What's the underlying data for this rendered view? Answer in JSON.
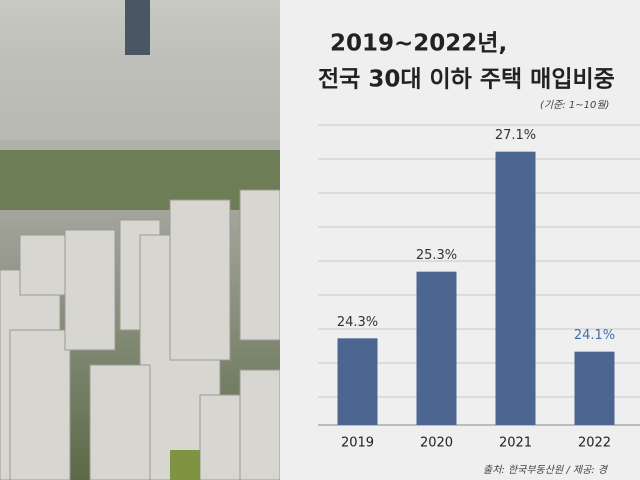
{
  "chart_data": {
    "type": "bar",
    "title": [
      "2019~2022년,",
      "전국 30대 이하 주택 매입비중"
    ],
    "note": "(기준: 1~10월)",
    "source": "출처: 한국부동산원 / 제공: 경",
    "categories": [
      "2019",
      "2020",
      "2021",
      "2022"
    ],
    "values": [
      24.3,
      25.3,
      27.1,
      24.1
    ],
    "value_labels": [
      "24.3%",
      "25.3%",
      "27.1%",
      "24.1%"
    ],
    "value_label_colors": [
      "#333333",
      "#333333",
      "#333333",
      "#3f6fb0"
    ],
    "color": "#4d6591",
    "ylim": [
      23,
      27.5
    ]
  }
}
